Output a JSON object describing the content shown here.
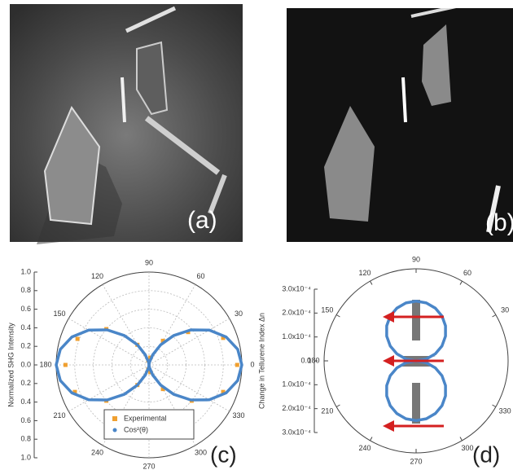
{
  "images": [
    {
      "label": "(a)"
    },
    {
      "label": "(b)"
    }
  ],
  "chart_data": [
    {
      "type": "polar",
      "label": "(c)",
      "ylabel": "Normalized SHG Intensity",
      "rlim": [
        0,
        1
      ],
      "rticks": [
        {
          "value": 0,
          "label": "0.0"
        },
        {
          "value": 0.2,
          "label": "0.2"
        },
        {
          "value": 0.4,
          "label": "0.4"
        },
        {
          "value": 0.6,
          "label": "0.6"
        },
        {
          "value": 0.8,
          "label": "0.8"
        },
        {
          "value": 1,
          "label": "1.0"
        }
      ],
      "thetaticks": [
        0,
        30,
        60,
        90,
        120,
        150,
        180,
        210,
        240,
        270,
        300,
        330
      ],
      "grid": true,
      "series": [
        {
          "name": "Experimental",
          "color": "#f0a030",
          "marker": "square",
          "theta": [
            0,
            20,
            40,
            60,
            80,
            100,
            120,
            140,
            160,
            180,
            200,
            220,
            240,
            260,
            280,
            300,
            320,
            340
          ],
          "r": [
            0.95,
            0.85,
            0.55,
            0.3,
            0.08,
            0.05,
            0.25,
            0.6,
            0.82,
            0.9,
            0.85,
            0.6,
            0.25,
            0.05,
            0.08,
            0.3,
            0.6,
            0.85
          ]
        },
        {
          "name": "Cos²(θ)",
          "color": "#4a86c8",
          "marker": "line",
          "theta": [
            0,
            10,
            20,
            30,
            40,
            50,
            60,
            70,
            80,
            90,
            100,
            110,
            120,
            130,
            140,
            150,
            160,
            170,
            180,
            190,
            200,
            210,
            220,
            230,
            240,
            250,
            260,
            270,
            280,
            290,
            300,
            310,
            320,
            330,
            340,
            350
          ],
          "r": [
            1,
            0.97,
            0.883,
            0.75,
            0.587,
            0.413,
            0.25,
            0.117,
            0.03,
            0,
            0.03,
            0.117,
            0.25,
            0.413,
            0.587,
            0.75,
            0.883,
            0.97,
            1,
            0.97,
            0.883,
            0.75,
            0.587,
            0.413,
            0.25,
            0.117,
            0.03,
            0,
            0.03,
            0.117,
            0.25,
            0.413,
            0.587,
            0.75,
            0.883,
            0.97
          ]
        }
      ]
    },
    {
      "type": "polar",
      "label": "(d)",
      "ylabel": "Change in Tellurene Index Δn",
      "rlim": [
        0,
        0.0003
      ],
      "rticks": [
        {
          "value": 0,
          "label": "0.0"
        },
        {
          "value": 0.0001,
          "label": "1.0x10⁻⁴"
        },
        {
          "value": 0.0002,
          "label": "2.0x10⁻⁴"
        },
        {
          "value": 0.0003,
          "label": "3.0x10⁻⁴"
        }
      ],
      "thetaticks": [
        30,
        60,
        90,
        120,
        150,
        180,
        210,
        240,
        270,
        300,
        330
      ],
      "grid": false,
      "series": [
        {
          "color": "#4a86c8",
          "marker": "line",
          "theta": [
            0,
            10,
            20,
            30,
            40,
            50,
            60,
            70,
            80,
            90,
            100,
            110,
            120,
            130,
            140,
            150,
            160,
            170,
            180,
            190,
            200,
            210,
            220,
            230,
            240,
            250,
            260,
            270,
            280,
            290,
            300,
            310,
            320,
            330,
            340,
            350
          ],
          "r": [
            0,
            4.34e-05,
            8.55e-05,
            0.000125,
            0.0001607,
            0.0001915,
            0.0002165,
            0.0002349,
            0.0002462,
            0.00025,
            0.0002462,
            0.0002349,
            0.0002165,
            0.0001915,
            0.0001607,
            0.000125,
            8.55e-05,
            4.34e-05,
            0,
            4.34e-05,
            8.55e-05,
            0.000125,
            0.0001607,
            0.0001915,
            0.0002165,
            0.0002349,
            0.0002462,
            0.00025,
            0.0002462,
            0.0002349,
            0.0002165,
            0.0001915,
            0.0001607,
            0.000125,
            8.55e-05,
            4.34e-05
          ]
        }
      ]
    }
  ]
}
